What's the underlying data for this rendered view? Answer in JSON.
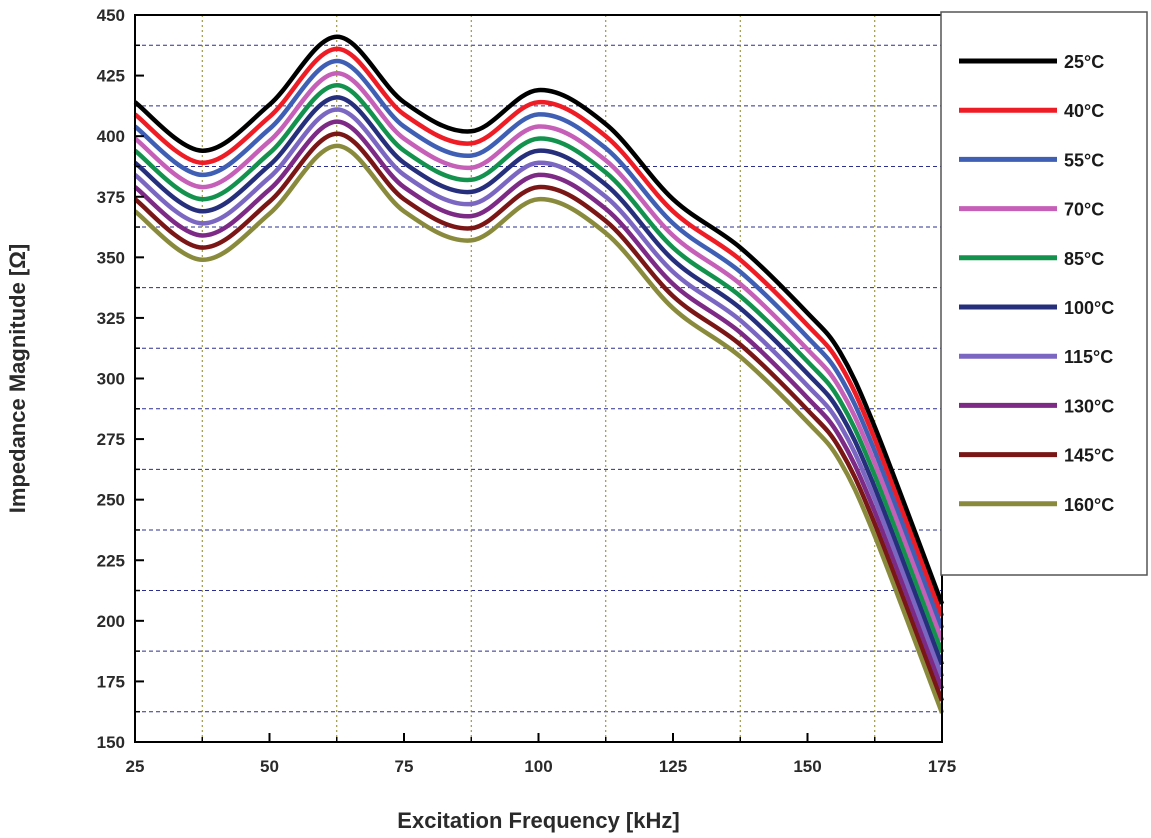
{
  "chart_data": {
    "type": "line",
    "title": "",
    "xlabel": "Excitation Frequency [kHz]",
    "ylabel": "Impedance Magnitude [Ω]",
    "xlim": [
      25,
      175
    ],
    "ylim": [
      150,
      450
    ],
    "xticks": [
      25,
      50,
      75,
      100,
      125,
      150,
      175
    ],
    "yticks": [
      150,
      175,
      200,
      225,
      250,
      275,
      300,
      325,
      350,
      375,
      400,
      425,
      450
    ],
    "grid": true,
    "legend_position": "top-right",
    "x": [
      25,
      37.5,
      50,
      62.5,
      75,
      87.5,
      100,
      112.5,
      125,
      137.5,
      150,
      156,
      162.5,
      175
    ],
    "series": [
      {
        "name": "25°C",
        "color": "#000000",
        "values": [
          414,
          394,
          413,
          441,
          414,
          402,
          419,
          405,
          374,
          354,
          327,
          311,
          280,
          207
        ]
      },
      {
        "name": "40°C",
        "color": "#ee1c25",
        "values": [
          409,
          389,
          408,
          436,
          409,
          397,
          414,
          400,
          369,
          349,
          322,
          306,
          275,
          202
        ]
      },
      {
        "name": "55°C",
        "color": "#3f5fb4",
        "values": [
          404,
          384,
          403,
          431,
          404,
          392,
          409,
          395,
          364,
          344,
          317,
          301,
          270,
          197
        ]
      },
      {
        "name": "70°C",
        "color": "#c55fb8",
        "values": [
          399,
          379,
          398,
          426,
          399,
          387,
          404,
          390,
          359,
          339,
          312,
          296,
          265,
          192
        ]
      },
      {
        "name": "85°C",
        "color": "#13924e",
        "values": [
          394,
          374,
          393,
          421,
          394,
          382,
          399,
          385,
          354,
          334,
          307,
          291,
          260,
          187
        ]
      },
      {
        "name": "100°C",
        "color": "#252f7c",
        "values": [
          389,
          369,
          388,
          416,
          389,
          377,
          394,
          380,
          349,
          329,
          302,
          286,
          255,
          182
        ]
      },
      {
        "name": "115°C",
        "color": "#7b66c2",
        "values": [
          384,
          364,
          383,
          411,
          384,
          372,
          389,
          375,
          344,
          324,
          297,
          281,
          250,
          177
        ]
      },
      {
        "name": "130°C",
        "color": "#7d2a86",
        "values": [
          379,
          359,
          378,
          406,
          379,
          367,
          384,
          370,
          339,
          319,
          292,
          276,
          245,
          172
        ]
      },
      {
        "name": "145°C",
        "color": "#7a1716",
        "values": [
          374,
          354,
          373,
          401,
          374,
          362,
          379,
          365,
          334,
          314,
          287,
          271,
          240,
          167
        ]
      },
      {
        "name": "160°C",
        "color": "#8a8a3c",
        "values": [
          369,
          349,
          368,
          396,
          369,
          357,
          374,
          360,
          329,
          309,
          282,
          266,
          235,
          162
        ]
      }
    ]
  }
}
